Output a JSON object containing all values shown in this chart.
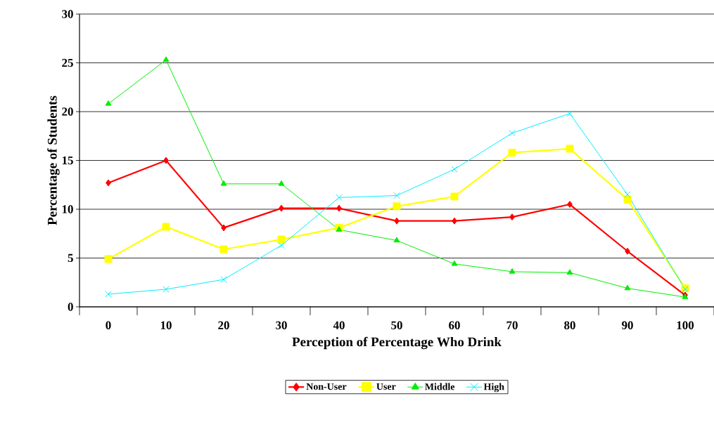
{
  "chart_data": {
    "type": "line",
    "xlabel": "Perception of Percentage Who Drink",
    "ylabel": "Percentage of Students",
    "categories": [
      "0",
      "10",
      "20",
      "30",
      "40",
      "50",
      "60",
      "70",
      "80",
      "90",
      "100"
    ],
    "series": [
      {
        "name": "Non-User",
        "color": "#ff0000",
        "marker": "diamond",
        "values": [
          12.7,
          15.0,
          8.1,
          10.1,
          10.1,
          8.8,
          8.8,
          9.2,
          10.5,
          5.7,
          1.2
        ]
      },
      {
        "name": "User",
        "color": "#ffff00",
        "marker": "square",
        "values": [
          4.9,
          8.2,
          5.9,
          6.9,
          8.1,
          10.3,
          11.3,
          15.8,
          16.2,
          11.0,
          1.9
        ]
      },
      {
        "name": "Middle",
        "color": "#00ee00",
        "marker": "triangle",
        "values": [
          20.8,
          25.3,
          12.6,
          12.6,
          7.9,
          6.8,
          4.4,
          3.6,
          3.5,
          1.9,
          1.0
        ]
      },
      {
        "name": "High",
        "color": "#00eeff",
        "marker": "cross",
        "values": [
          1.3,
          1.8,
          2.8,
          6.3,
          11.2,
          11.4,
          14.1,
          17.8,
          19.8,
          11.5,
          1.8
        ]
      }
    ],
    "ylim": [
      0,
      30
    ],
    "yticks": [
      0,
      5,
      10,
      15,
      20,
      25,
      30
    ],
    "grid": "y",
    "legend": "bottom"
  }
}
